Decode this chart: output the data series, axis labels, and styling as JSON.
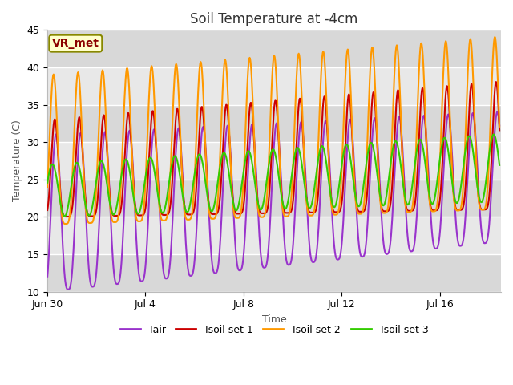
{
  "title": "Soil Temperature at -4cm",
  "xlabel": "Time",
  "ylabel": "Temperature (C)",
  "ylim": [
    10,
    45
  ],
  "xlim_days": 18.5,
  "background_color": "#ffffff",
  "plot_bg_color": "#e8e8e8",
  "plot_bg_bands": [
    {
      "ymin": 10,
      "ymax": 15,
      "color": "#d8d8d8"
    },
    {
      "ymin": 15,
      "ymax": 20,
      "color": "#e8e8e8"
    },
    {
      "ymin": 20,
      "ymax": 25,
      "color": "#d8d8d8"
    },
    {
      "ymin": 25,
      "ymax": 30,
      "color": "#e8e8e8"
    },
    {
      "ymin": 30,
      "ymax": 35,
      "color": "#d8d8d8"
    },
    {
      "ymin": 35,
      "ymax": 40,
      "color": "#e8e8e8"
    },
    {
      "ymin": 40,
      "ymax": 45,
      "color": "#d8d8d8"
    }
  ],
  "series": {
    "Tair": {
      "color": "#9933cc",
      "lw": 1.5
    },
    "Tsoil set 1": {
      "color": "#cc0000",
      "lw": 1.5
    },
    "Tsoil set 2": {
      "color": "#ff9900",
      "lw": 1.5
    },
    "Tsoil set 3": {
      "color": "#33cc00",
      "lw": 1.5
    }
  },
  "xtick_labels": [
    "Jun 30",
    "Jul 4",
    "Jul 8",
    "Jul 12",
    "Jul 16"
  ],
  "xtick_days": [
    0,
    4,
    8,
    12,
    16
  ],
  "ytick_vals": [
    10,
    15,
    20,
    25,
    30,
    35,
    40,
    45
  ],
  "annotation_text": "VR_met",
  "grid_color": "#ffffff",
  "title_fontsize": 12,
  "label_fontsize": 9,
  "tick_fontsize": 9
}
